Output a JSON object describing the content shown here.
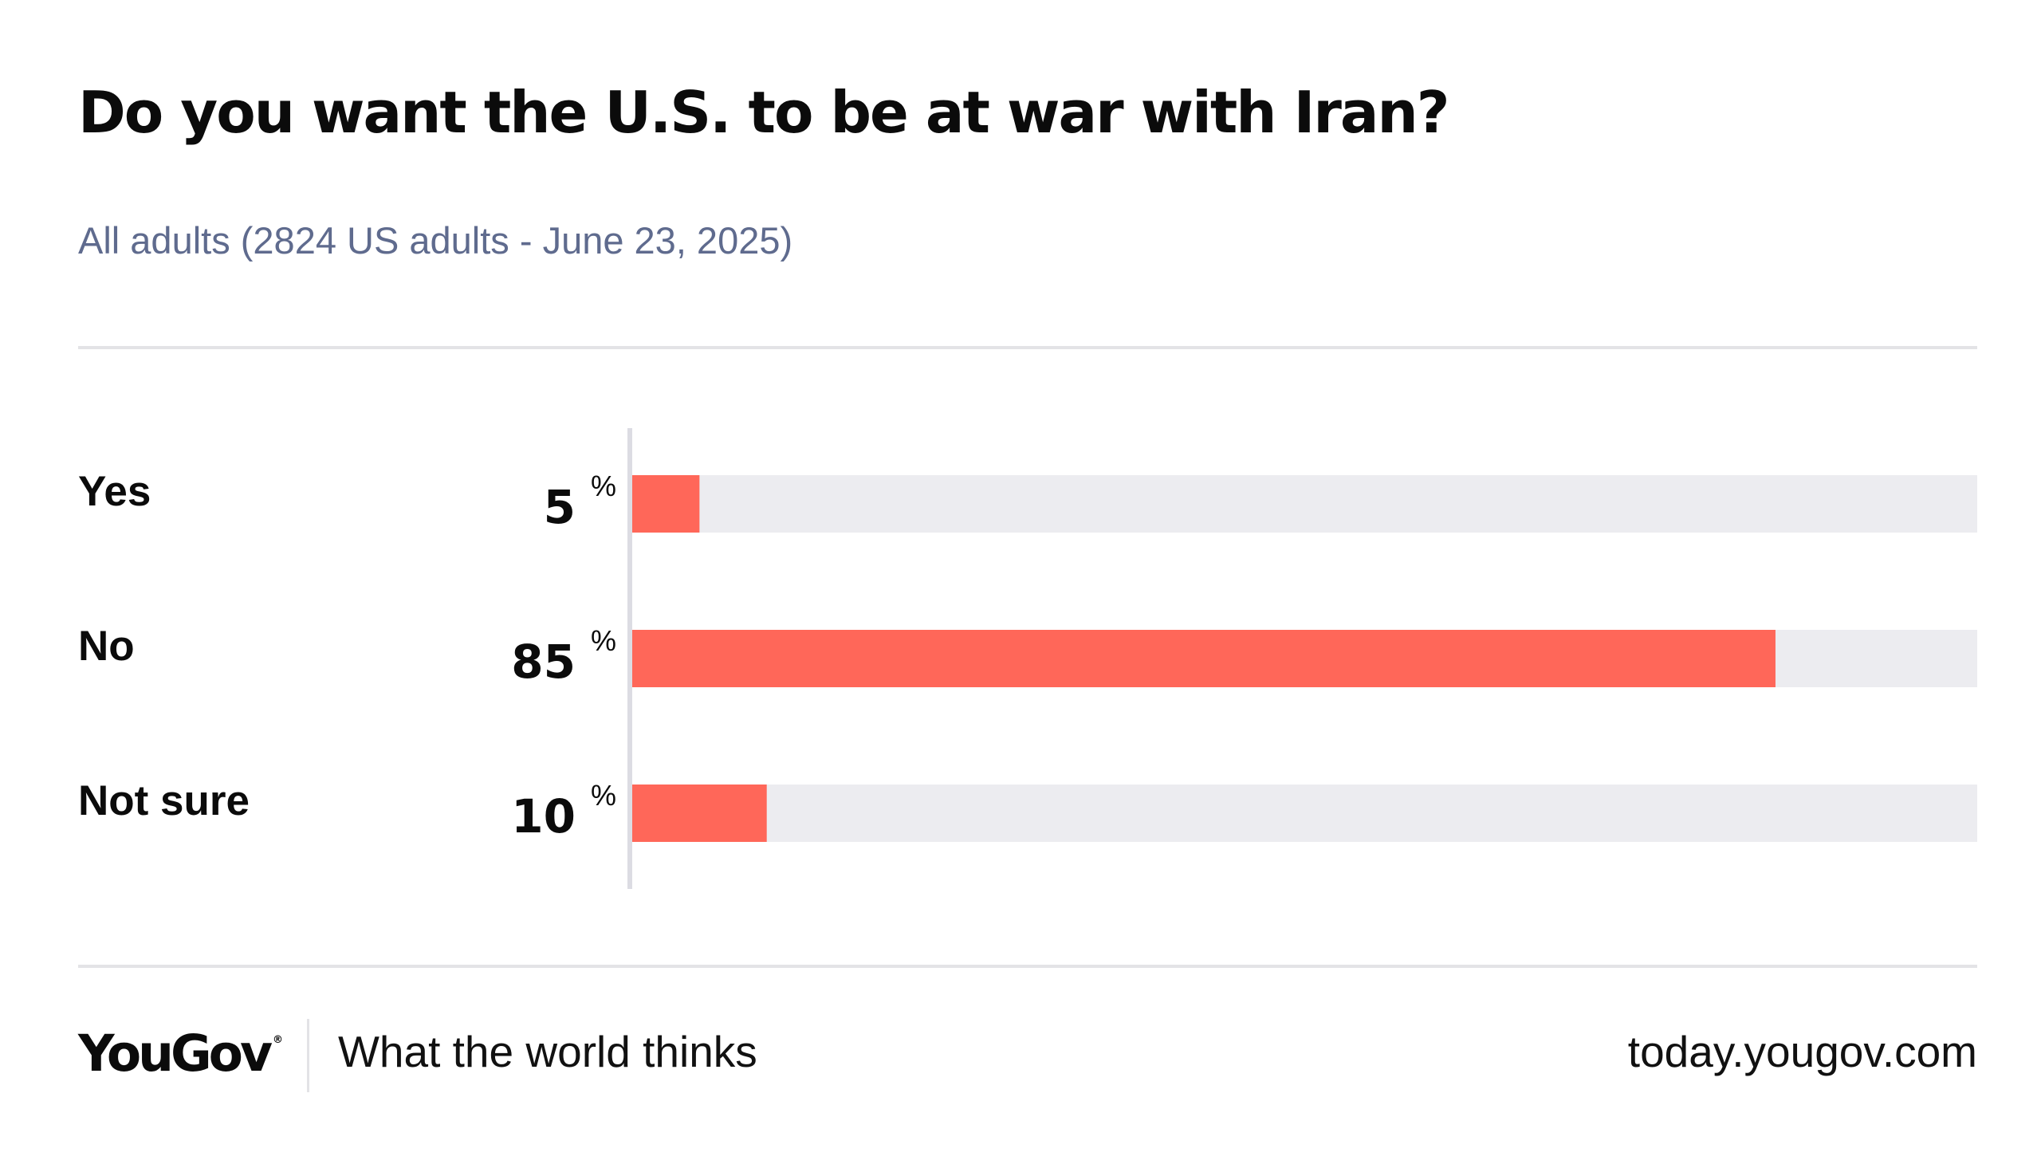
{
  "chart_data": {
    "type": "bar",
    "orientation": "horizontal",
    "title": "Do you want the U.S. to be at war with Iran?",
    "subtitle": "All adults (2824 US adults - June 23, 2025)",
    "categories": [
      "Yes",
      "No",
      "Not sure"
    ],
    "values": [
      5,
      85,
      10
    ],
    "value_suffix": "%",
    "xlim": [
      0,
      100
    ],
    "grid": false,
    "legend": "none",
    "colors": {
      "bar": "#ff6759",
      "track": "#ececf0",
      "axis": "#dcdce3",
      "text": "#0b0b0b"
    }
  },
  "footer": {
    "brand": "YouGov",
    "brand_mark": "®",
    "tagline": "What the world thinks",
    "url": "today.yougov.com"
  }
}
